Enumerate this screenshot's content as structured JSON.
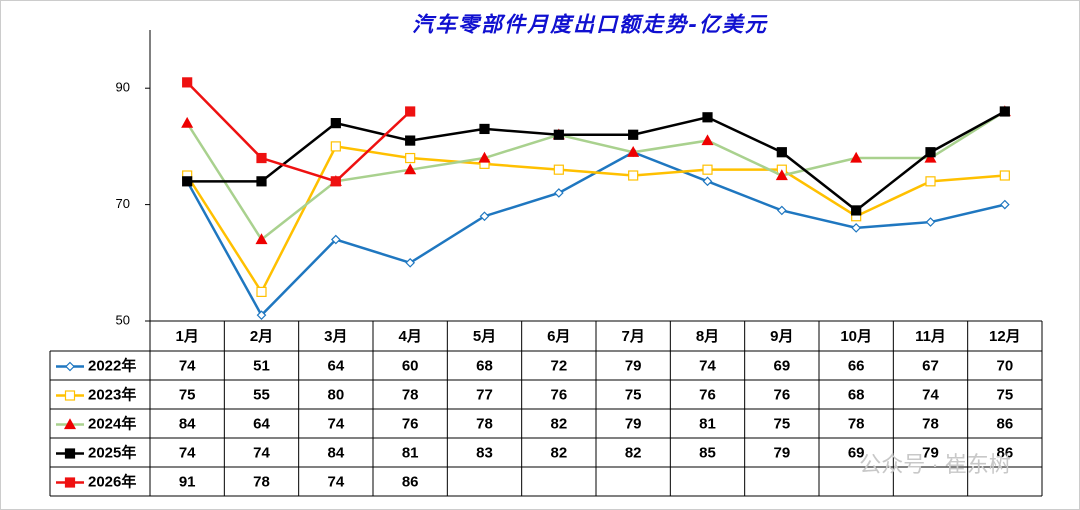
{
  "chart_data": {
    "type": "line",
    "title": "汽车零部件月度出口额走势-亿美元",
    "categories": [
      "1月",
      "2月",
      "3月",
      "4月",
      "5月",
      "6月",
      "7月",
      "8月",
      "9月",
      "10月",
      "11月",
      "12月"
    ],
    "ylim": [
      50,
      100
    ],
    "yticks": [
      50,
      70,
      90
    ],
    "series": [
      {
        "name": "2022年",
        "color": "#1f77c0",
        "marker": "diamond",
        "marker_color": "#1f77c0",
        "marker_filled": false,
        "values": [
          74,
          51,
          64,
          60,
          68,
          72,
          79,
          74,
          69,
          66,
          67,
          70
        ]
      },
      {
        "name": "2023年",
        "color": "#ffc000",
        "marker": "square",
        "marker_color": "#ffc000",
        "marker_filled": false,
        "values": [
          75,
          55,
          80,
          78,
          77,
          76,
          75,
          76,
          76,
          68,
          74,
          75
        ]
      },
      {
        "name": "2024年",
        "color": "#a9d18e",
        "marker": "triangle",
        "marker_color": "#ee0000",
        "marker_filled": true,
        "values": [
          84,
          64,
          74,
          76,
          78,
          82,
          79,
          81,
          75,
          78,
          78,
          86
        ]
      },
      {
        "name": "2025年",
        "color": "#000000",
        "marker": "square",
        "marker_color": "#000000",
        "marker_filled": true,
        "values": [
          74,
          74,
          84,
          81,
          83,
          82,
          82,
          85,
          79,
          69,
          79,
          86
        ]
      },
      {
        "name": "2026年",
        "color": "#ee1111",
        "marker": "square",
        "marker_color": "#ee1111",
        "marker_filled": true,
        "values": [
          91,
          78,
          74,
          86,
          null,
          null,
          null,
          null,
          null,
          null,
          null,
          null
        ]
      }
    ],
    "watermark": "公众号 · 崔东树"
  }
}
